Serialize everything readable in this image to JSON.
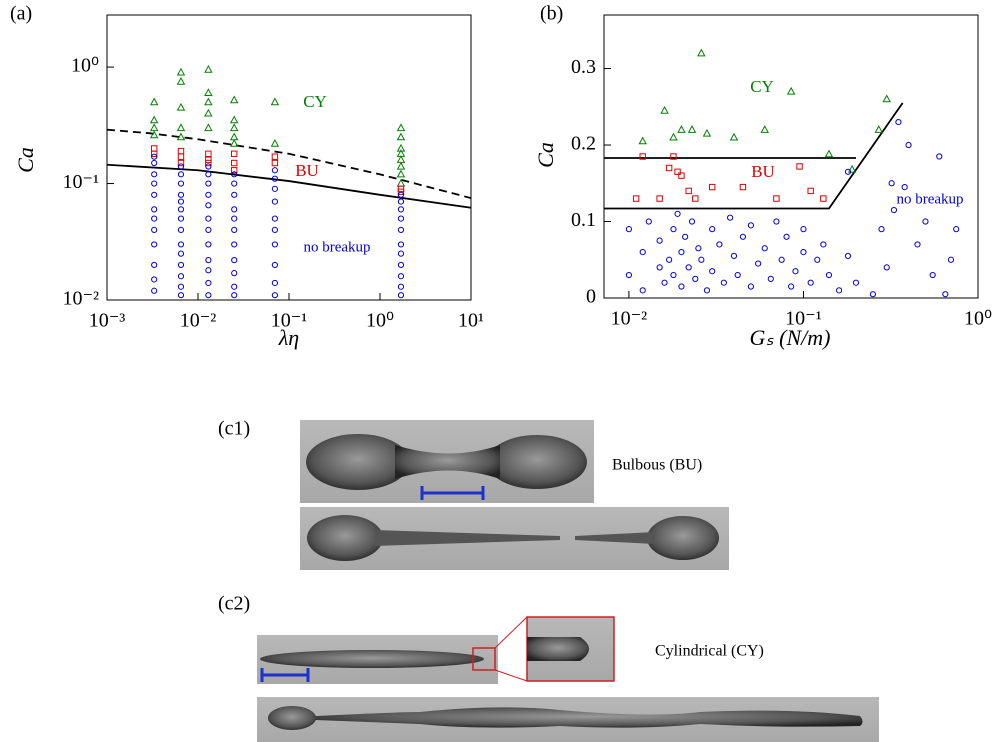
{
  "chart_data": [
    {
      "type": "scatter",
      "panel_label": "(a)",
      "x_label": "λη",
      "y_label": "Ca",
      "xlog": true,
      "ylog": true,
      "xlim": [
        0.001,
        10
      ],
      "ylim": [
        0.01,
        2.8
      ],
      "xticks": [
        {
          "value": 0.001,
          "label": "10⁻³"
        },
        {
          "value": 0.01,
          "label": "10⁻²"
        },
        {
          "value": 0.1,
          "label": "10⁻¹"
        },
        {
          "value": 1,
          "label": "10⁰"
        },
        {
          "value": 10,
          "label": "10¹"
        }
      ],
      "yticks": [
        {
          "value": 0.01,
          "label": "10⁻²"
        },
        {
          "value": 0.1,
          "label": "10⁻¹"
        },
        {
          "value": 1,
          "label": "10⁰"
        }
      ],
      "series": [
        {
          "name": "CY",
          "color": "#008000",
          "marker": "triangle",
          "x": [
            0.0033,
            0.0033,
            0.0033,
            0.0033,
            0.0065,
            0.0065,
            0.0065,
            0.0065,
            0.0065,
            0.013,
            0.013,
            0.013,
            0.013,
            0.013,
            0.025,
            0.025,
            0.025,
            0.025,
            0.025,
            0.07,
            0.07,
            1.7,
            1.7,
            1.7,
            1.7,
            1.7,
            1.7,
            1.7,
            1.7
          ],
          "values": [
            0.26,
            0.3,
            0.35,
            0.5,
            0.25,
            0.3,
            0.45,
            0.75,
            0.9,
            0.3,
            0.4,
            0.5,
            0.6,
            0.95,
            0.22,
            0.25,
            0.3,
            0.35,
            0.52,
            0.22,
            0.5,
            0.1,
            0.12,
            0.14,
            0.16,
            0.18,
            0.2,
            0.25,
            0.3
          ]
        },
        {
          "name": "BU",
          "color": "#e00000",
          "marker": "square",
          "x": [
            0.0033,
            0.0033,
            0.0065,
            0.0065,
            0.0065,
            0.013,
            0.013,
            0.013,
            0.025,
            0.025,
            0.025,
            0.07,
            0.07,
            1.7,
            1.7
          ],
          "values": [
            0.18,
            0.2,
            0.15,
            0.17,
            0.19,
            0.15,
            0.16,
            0.18,
            0.13,
            0.15,
            0.18,
            0.15,
            0.17,
            0.085,
            0.09
          ]
        },
        {
          "name": "no breakup",
          "color": "#0000e0",
          "marker": "circle",
          "x": [
            0.0033,
            0.0033,
            0.0033,
            0.0033,
            0.0033,
            0.0033,
            0.0033,
            0.0033,
            0.0033,
            0.0033,
            0.0033,
            0.0033,
            0.0065,
            0.0065,
            0.0065,
            0.0065,
            0.0065,
            0.0065,
            0.0065,
            0.0065,
            0.0065,
            0.0065,
            0.0065,
            0.0065,
            0.0065,
            0.0065,
            0.013,
            0.013,
            0.013,
            0.013,
            0.013,
            0.013,
            0.013,
            0.013,
            0.013,
            0.013,
            0.013,
            0.013,
            0.025,
            0.025,
            0.025,
            0.025,
            0.025,
            0.025,
            0.025,
            0.025,
            0.025,
            0.025,
            0.025,
            0.07,
            0.07,
            0.07,
            0.07,
            0.07,
            0.07,
            0.07,
            0.07,
            0.07,
            0.07,
            1.7,
            1.7,
            1.7,
            1.7,
            1.7,
            1.7,
            1.7,
            1.7,
            1.7,
            1.7,
            1.7
          ],
          "values": [
            0.012,
            0.015,
            0.02,
            0.03,
            0.04,
            0.05,
            0.06,
            0.08,
            0.1,
            0.12,
            0.15,
            0.17,
            0.011,
            0.013,
            0.016,
            0.02,
            0.025,
            0.03,
            0.04,
            0.05,
            0.06,
            0.07,
            0.08,
            0.1,
            0.12,
            0.14,
            0.011,
            0.014,
            0.018,
            0.022,
            0.03,
            0.04,
            0.05,
            0.065,
            0.08,
            0.1,
            0.12,
            0.14,
            0.011,
            0.013,
            0.017,
            0.022,
            0.03,
            0.04,
            0.05,
            0.06,
            0.08,
            0.1,
            0.12,
            0.011,
            0.014,
            0.02,
            0.03,
            0.04,
            0.05,
            0.07,
            0.09,
            0.11,
            0.13,
            0.011,
            0.013,
            0.016,
            0.02,
            0.025,
            0.03,
            0.04,
            0.05,
            0.06,
            0.07,
            0.08
          ]
        }
      ],
      "lines": [
        {
          "color": "#000000",
          "dash": true,
          "x": [
            0.001,
            0.003,
            0.01,
            0.1,
            1,
            10
          ],
          "y": [
            0.29,
            0.27,
            0.24,
            0.18,
            0.12,
            0.075
          ]
        },
        {
          "color": "#000000",
          "dash": false,
          "x": [
            0.001,
            0.01,
            0.1,
            1,
            10
          ],
          "y": [
            0.145,
            0.13,
            0.105,
            0.08,
            0.062
          ]
        }
      ]
    },
    {
      "type": "scatter",
      "panel_label": "(b)",
      "x_label": "Gₛ (N/m)",
      "y_label": "Ca",
      "xlog": true,
      "ylog": false,
      "xlim": [
        0.0072,
        1
      ],
      "ylim": [
        0,
        0.37
      ],
      "xticks": [
        {
          "value": 0.01,
          "label": "10⁻²"
        },
        {
          "value": 0.1,
          "label": "10⁻¹"
        },
        {
          "value": 1,
          "label": "10⁰"
        }
      ],
      "yticks": [
        0,
        0.1,
        0.2,
        0.3
      ],
      "series": [
        {
          "name": "CY",
          "color": "#008000",
          "marker": "triangle",
          "x": [
            0.012,
            0.016,
            0.018,
            0.02,
            0.023,
            0.026,
            0.028,
            0.04,
            0.06,
            0.085,
            0.14,
            0.19,
            0.27,
            0.3
          ],
          "values": [
            0.205,
            0.245,
            0.21,
            0.22,
            0.22,
            0.32,
            0.215,
            0.21,
            0.22,
            0.27,
            0.188,
            0.168,
            0.22,
            0.26
          ]
        },
        {
          "name": "BU",
          "color": "#e00000",
          "marker": "square",
          "x": [
            0.012,
            0.011,
            0.017,
            0.019,
            0.02,
            0.022,
            0.024,
            0.03,
            0.045,
            0.07,
            0.095,
            0.11,
            0.13,
            0.015,
            0.018
          ],
          "values": [
            0.185,
            0.13,
            0.17,
            0.165,
            0.16,
            0.14,
            0.13,
            0.145,
            0.145,
            0.13,
            0.172,
            0.14,
            0.13,
            0.13,
            0.185
          ]
        },
        {
          "name": "no breakup",
          "color": "#0000e0",
          "marker": "circle",
          "x": [
            0.01,
            0.01,
            0.012,
            0.012,
            0.013,
            0.015,
            0.015,
            0.016,
            0.017,
            0.018,
            0.018,
            0.019,
            0.02,
            0.02,
            0.021,
            0.022,
            0.023,
            0.024,
            0.025,
            0.026,
            0.028,
            0.03,
            0.03,
            0.033,
            0.035,
            0.038,
            0.04,
            0.042,
            0.045,
            0.05,
            0.05,
            0.055,
            0.06,
            0.065,
            0.07,
            0.075,
            0.08,
            0.085,
            0.09,
            0.1,
            0.1,
            0.11,
            0.12,
            0.13,
            0.14,
            0.16,
            0.18,
            0.2,
            0.25,
            0.28,
            0.3,
            0.33,
            0.35,
            0.4,
            0.45,
            0.5,
            0.55,
            0.6,
            0.65,
            0.7,
            0.75,
            0.32,
            0.38,
            0.18
          ],
          "values": [
            0.09,
            0.03,
            0.06,
            0.01,
            0.1,
            0.04,
            0.075,
            0.02,
            0.05,
            0.09,
            0.03,
            0.11,
            0.06,
            0.015,
            0.08,
            0.04,
            0.1,
            0.025,
            0.065,
            0.05,
            0.01,
            0.09,
            0.035,
            0.07,
            0.02,
            0.105,
            0.055,
            0.03,
            0.08,
            0.015,
            0.095,
            0.045,
            0.065,
            0.025,
            0.1,
            0.05,
            0.08,
            0.015,
            0.035,
            0.06,
            0.09,
            0.02,
            0.05,
            0.07,
            0.03,
            0.01,
            0.055,
            0.02,
            0.005,
            0.09,
            0.04,
            0.115,
            0.23,
            0.2,
            0.07,
            0.1,
            0.03,
            0.185,
            0.005,
            0.05,
            0.09,
            0.15,
            0.145,
            0.165
          ]
        }
      ],
      "lines": [
        {
          "color": "#000000",
          "dash": false,
          "x": [
            0.0072,
            0.2
          ],
          "y": [
            0.183,
            0.183
          ]
        },
        {
          "color": "#000000",
          "dash": false,
          "x": [
            0.0072,
            0.14,
            0.37
          ],
          "y": [
            0.117,
            0.117,
            0.255
          ]
        }
      ]
    }
  ],
  "panels": [
    {
      "label": "(c1)",
      "caption": "Bulbous (BU)"
    },
    {
      "label": "(c2)",
      "caption": "Cylindrical (CY)"
    }
  ]
}
